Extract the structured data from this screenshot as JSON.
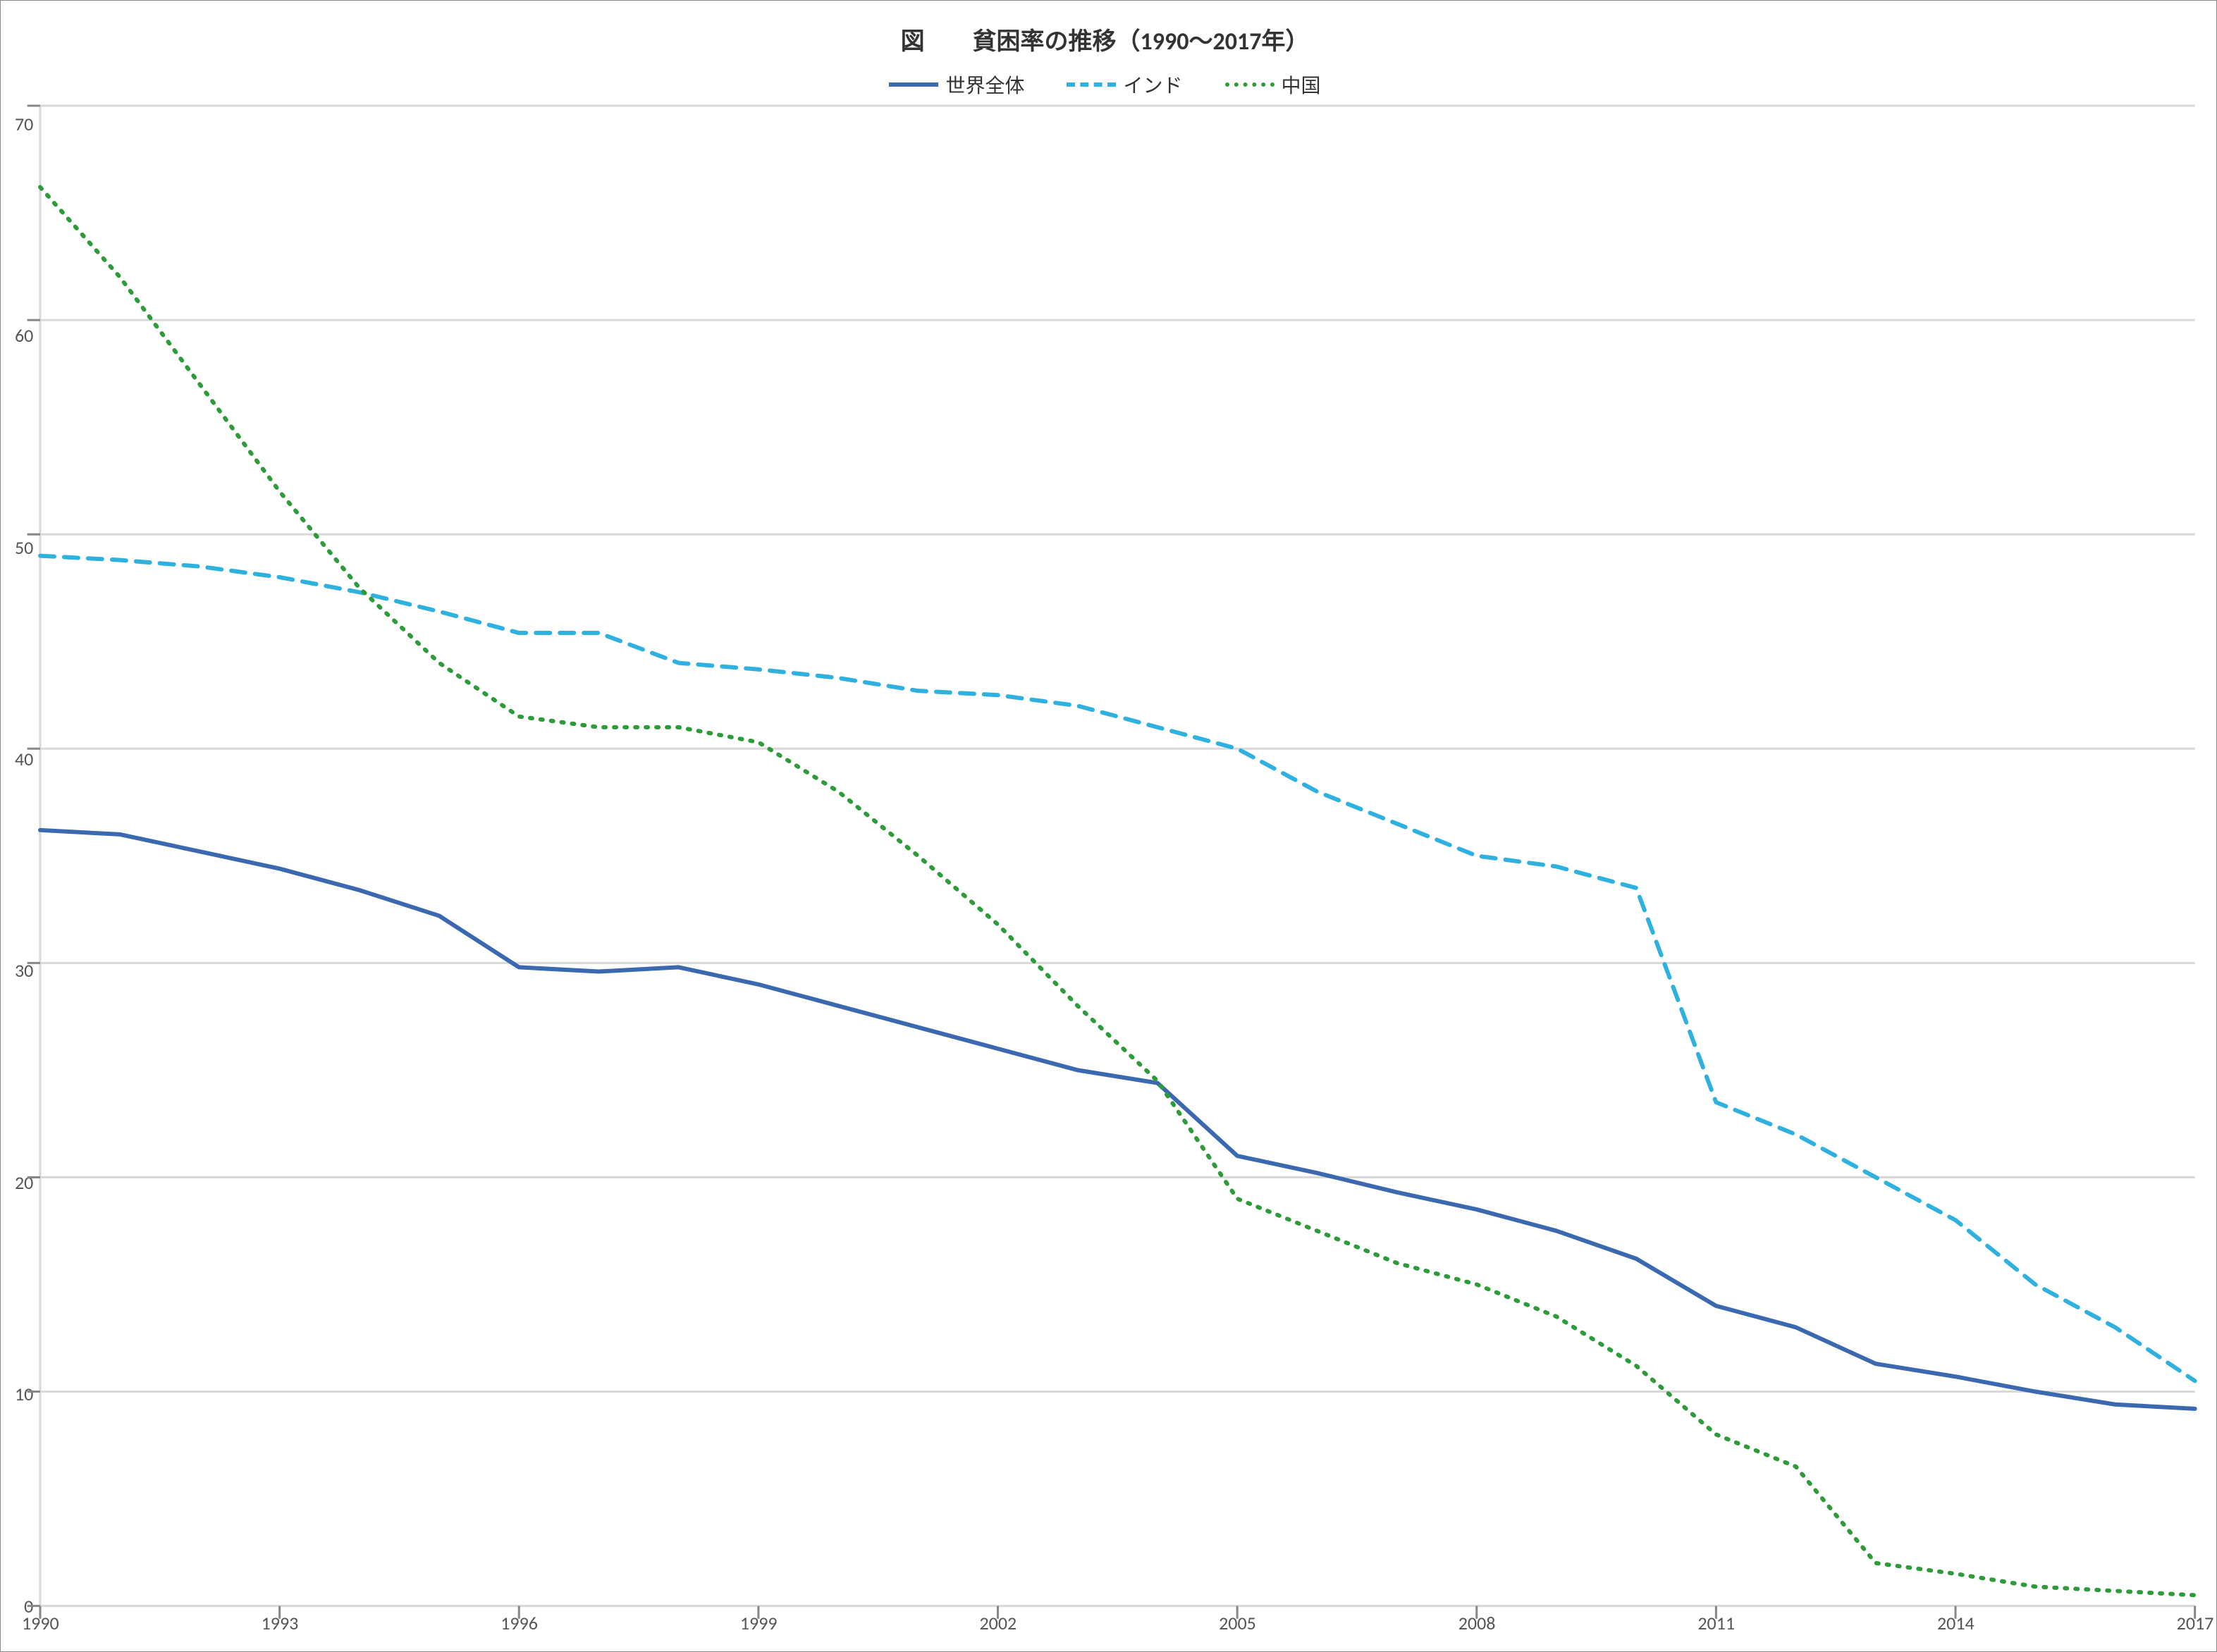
{
  "chart": {
    "type": "line",
    "title": "図　　貧困率の推移（1990～2017年）",
    "title_fontsize": 34,
    "title_fontweight": "bold",
    "title_color": "#333333",
    "background_color": "#ffffff",
    "border_color": "#888888",
    "grid_color": "#d9d9d9",
    "grid_width": 1,
    "axis_line_color": "#d9d9d9",
    "axis_tick_color": "#888888",
    "axis_label_color": "#555555",
    "axis_label_fontsize": 26,
    "ylim": [
      0,
      70
    ],
    "ytick_step": 10,
    "yticks": [
      0,
      10,
      20,
      30,
      40,
      50,
      60,
      70
    ],
    "x_categories_all": [
      1990,
      1991,
      1992,
      1993,
      1994,
      1995,
      1996,
      1997,
      1998,
      1999,
      2000,
      2001,
      2002,
      2003,
      2004,
      2005,
      2006,
      2007,
      2008,
      2009,
      2010,
      2011,
      2012,
      2013,
      2014,
      2015,
      2016,
      2017
    ],
    "x_tick_labels": [
      "1990",
      "1993",
      "1996",
      "1999",
      "2002",
      "2005",
      "2008",
      "2011",
      "2014",
      "2017"
    ],
    "x_tick_positions": [
      1990,
      1993,
      1996,
      1999,
      2002,
      2005,
      2008,
      2011,
      2014,
      2017
    ],
    "legend": {
      "position": "top-center",
      "fontsize": 28,
      "label_color": "#333333",
      "items": [
        {
          "label": "世界全体",
          "color": "#3b69b0",
          "dash": "solid",
          "width": 6
        },
        {
          "label": "インド",
          "color": "#2fb1e0",
          "dash": "dashed",
          "width": 6
        },
        {
          "label": "中国",
          "color": "#2e9b3a",
          "dash": "dotted",
          "width": 6
        }
      ]
    },
    "series": [
      {
        "name": "世界全体",
        "color": "#3b69b0",
        "dash": "solid",
        "width": 6,
        "x": [
          1990,
          1991,
          1992,
          1993,
          1994,
          1995,
          1996,
          1997,
          1998,
          1999,
          2000,
          2001,
          2002,
          2003,
          2004,
          2005,
          2006,
          2007,
          2008,
          2009,
          2010,
          2011,
          2012,
          2013,
          2014,
          2015,
          2016,
          2017
        ],
        "y": [
          36.2,
          36.0,
          35.2,
          34.4,
          33.4,
          32.2,
          29.8,
          29.6,
          29.8,
          29.0,
          28.0,
          27.0,
          26.0,
          25.0,
          24.4,
          21.0,
          20.2,
          19.3,
          18.5,
          17.5,
          16.2,
          14.0,
          13.0,
          11.3,
          10.7,
          10.0,
          9.4,
          9.2
        ]
      },
      {
        "name": "インド",
        "color": "#2fb1e0",
        "dash": "dashed",
        "width": 6,
        "x": [
          1990,
          1991,
          1992,
          1993,
          1994,
          1995,
          1996,
          1997,
          1998,
          1999,
          2000,
          2001,
          2002,
          2003,
          2004,
          2005,
          2006,
          2007,
          2008,
          2009,
          2010,
          2011,
          2012,
          2013,
          2014,
          2015,
          2016,
          2017
        ],
        "y": [
          49.0,
          48.8,
          48.5,
          48.0,
          47.3,
          46.4,
          45.4,
          45.4,
          44.0,
          43.7,
          43.3,
          42.7,
          42.5,
          42.0,
          41.0,
          40.0,
          38.0,
          36.5,
          35.0,
          34.5,
          33.5,
          23.5,
          22.0,
          20.0,
          18.0,
          15.0,
          13.0,
          10.5
        ]
      },
      {
        "name": "中国",
        "color": "#2e9b3a",
        "dash": "dotted",
        "width": 6,
        "x": [
          1990,
          1991,
          1992,
          1993,
          1994,
          1995,
          1996,
          1997,
          1998,
          1999,
          2000,
          2001,
          2002,
          2003,
          2004,
          2005,
          2006,
          2007,
          2008,
          2009,
          2010,
          2011,
          2012,
          2013,
          2014,
          2015,
          2016,
          2017
        ],
        "y": [
          66.2,
          62.0,
          57.0,
          52.0,
          47.5,
          44.0,
          41.5,
          41.0,
          41.0,
          40.3,
          38.0,
          35.0,
          31.8,
          28.0,
          24.5,
          19.0,
          17.5,
          16.0,
          15.0,
          13.5,
          11.2,
          8.0,
          6.5,
          2.0,
          1.5,
          0.9,
          0.7,
          0.5
        ]
      }
    ]
  }
}
